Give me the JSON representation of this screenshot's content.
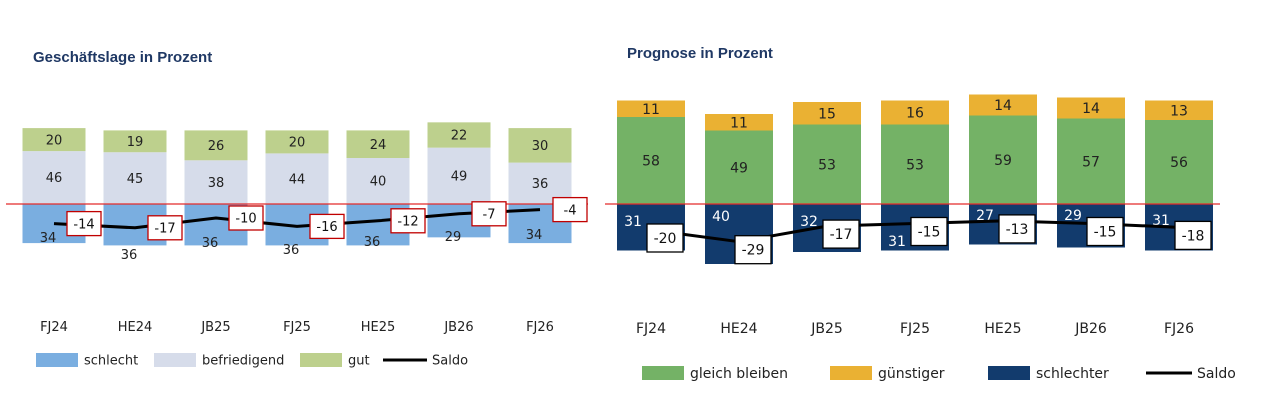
{
  "chart_data": [
    {
      "type": "bar",
      "stacked": true,
      "title": "Geschäftslage in Prozent",
      "categories": [
        "FJ24",
        "HE24",
        "JB25",
        "FJ25",
        "HE25",
        "JB26",
        "FJ26"
      ],
      "series": [
        {
          "name": "schlecht",
          "values": [
            34,
            36,
            36,
            36,
            36,
            29,
            34
          ],
          "color": "#7aaee0",
          "direction": "negative"
        },
        {
          "name": "befriedigend",
          "values": [
            46,
            45,
            38,
            44,
            40,
            49,
            36
          ],
          "color": "#d6dcea",
          "direction": "positive"
        },
        {
          "name": "gut",
          "values": [
            20,
            19,
            26,
            20,
            24,
            22,
            30
          ],
          "color": "#bdd08d",
          "direction": "positive"
        }
      ],
      "line": {
        "name": "Saldo",
        "values": [
          -14,
          -17,
          -10,
          -16,
          -12,
          -7,
          -4
        ],
        "color": "#000000"
      },
      "zero_line_color": "#e32b2b",
      "label_box_border": "#c00000",
      "legend_position": "bottom"
    },
    {
      "type": "bar",
      "stacked": true,
      "title": "Prognose in Prozent",
      "categories": [
        "FJ24",
        "HE24",
        "JB25",
        "FJ25",
        "HE25",
        "JB26",
        "FJ26"
      ],
      "series": [
        {
          "name": "gleich bleiben",
          "values": [
            58,
            49,
            53,
            53,
            59,
            57,
            56
          ],
          "color": "#74b266",
          "direction": "positive"
        },
        {
          "name": "günstiger",
          "values": [
            11,
            11,
            15,
            16,
            14,
            14,
            13
          ],
          "color": "#eab133",
          "direction": "positive"
        },
        {
          "name": "schlechter",
          "values": [
            31,
            40,
            32,
            31,
            27,
            29,
            31
          ],
          "color": "#123b6d",
          "direction": "negative"
        }
      ],
      "line": {
        "name": "Saldo",
        "values": [
          -20,
          -29,
          -17,
          -15,
          -13,
          -15,
          -18
        ],
        "color": "#000000"
      },
      "zero_line_color": "#e32b2b",
      "label_box_border": "#000000",
      "legend_position": "bottom"
    }
  ]
}
